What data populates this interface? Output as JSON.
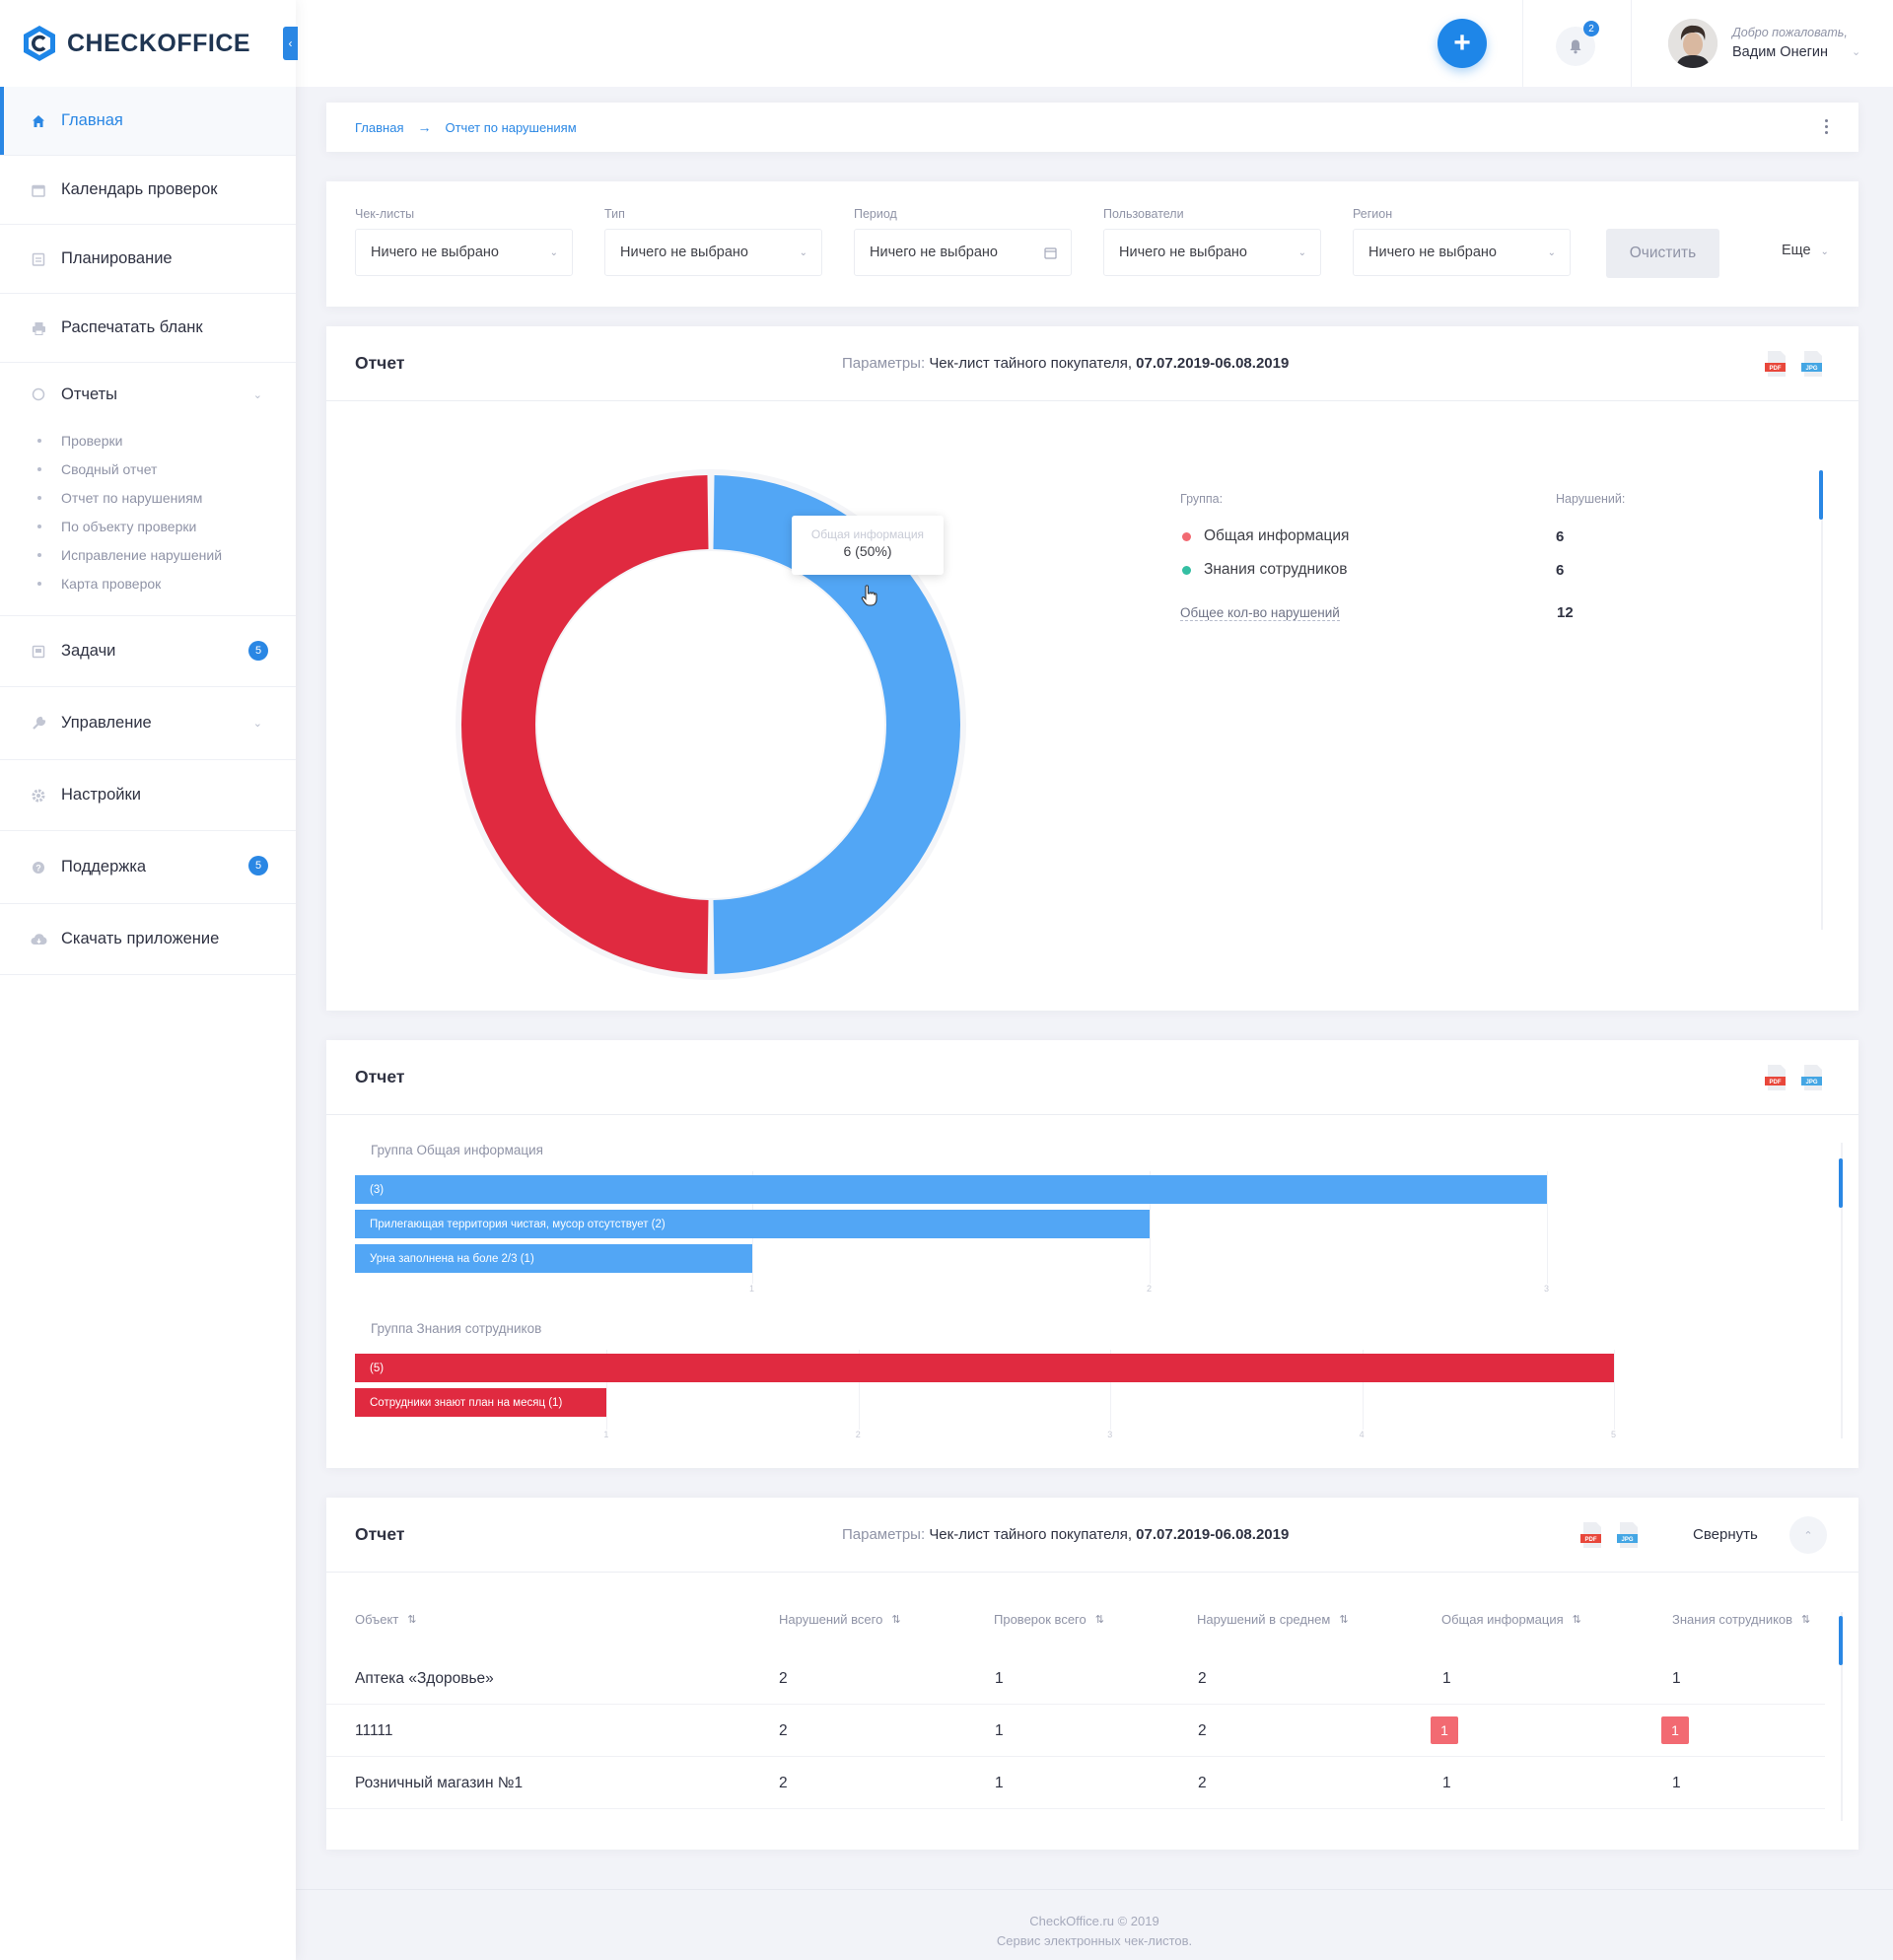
{
  "brand": {
    "name": "CHECKOFFICE"
  },
  "sidebar": {
    "items": [
      {
        "label": "Главная",
        "icon": "home-icon",
        "active": true
      },
      {
        "label": "Календарь проверок",
        "icon": "calendar-icon"
      },
      {
        "label": "Планирование",
        "icon": "planning-icon"
      },
      {
        "label": "Распечатать бланк",
        "icon": "print-icon"
      }
    ],
    "reports": {
      "label": "Отчеты",
      "icon": "reports-icon",
      "sub": [
        "Проверки",
        "Сводный отчет",
        "Отчет по нарушениям",
        "По объекту проверки",
        "Исправление нарушений",
        "Карта проверок"
      ]
    },
    "items2": [
      {
        "label": "Задачи",
        "icon": "tasks-icon",
        "badge": "5"
      },
      {
        "label": "Управление",
        "icon": "wrench-icon"
      },
      {
        "label": "Настройки",
        "icon": "gear-icon"
      },
      {
        "label": "Поддержка",
        "icon": "help-icon",
        "badge": "5"
      },
      {
        "label": "Скачать приложение",
        "icon": "cloud-download-icon"
      }
    ]
  },
  "header": {
    "notifications_count": "2",
    "welcome": "Добро пожаловать,",
    "user_name": "Вадим Онегин"
  },
  "breadcrumb": {
    "home": "Главная",
    "current": "Отчет по нарушениям"
  },
  "filters": {
    "checklists": {
      "label": "Чек-листы",
      "value": "Ничего не выбрано"
    },
    "type": {
      "label": "Тип",
      "value": "Ничего не выбрано"
    },
    "period": {
      "label": "Период",
      "value": "Ничего не выбрано"
    },
    "users": {
      "label": "Пользователи",
      "value": "Ничего не выбрано"
    },
    "region": {
      "label": "Регион",
      "value": "Ничего не выбрано"
    },
    "clear_label": "Очистить",
    "more_label": "Еще"
  },
  "report1": {
    "title": "Отчет",
    "params_label": "Параметры:",
    "params_text": "Чек-лист тайного покупателя,",
    "params_date": "07.07.2019-06.08.2019",
    "legend_group_header": "Группа:",
    "legend_violations_header": "Нарушений:",
    "legend": [
      {
        "name": "Общая информация",
        "value": "6",
        "color": "#f26a72"
      },
      {
        "name": "Знания сотрудников",
        "value": "6",
        "color": "#34bfa3"
      }
    ],
    "total_label": "Общее кол-во нарушений",
    "total_value": "12",
    "tooltip": {
      "name": "Общая информация",
      "value": "6 (50%)"
    }
  },
  "chart_data": [
    {
      "type": "pie",
      "categories": [
        "Общая информация",
        "Знания сотрудников"
      ],
      "values": [
        6,
        6
      ],
      "colors": [
        "#52a6f5",
        "#e02a40"
      ]
    },
    {
      "type": "bar",
      "orientation": "horizontal",
      "title": "Группа Общая информация",
      "categories": [
        "",
        "Прилегающая территория чистая, мусор отсутствует",
        "Урна заполнена на боле 2/3"
      ],
      "values": [
        3,
        2,
        1
      ],
      "labels": [
        "(3)",
        "Прилегающая территория чистая, мусор отсутствует (2)",
        "Урна заполнена на боле 2/3 (1)"
      ],
      "ticks": [
        "1",
        "2",
        "3"
      ],
      "xlim": [
        0,
        3
      ],
      "color": "#52a6f5"
    },
    {
      "type": "bar",
      "orientation": "horizontal",
      "title": "Группа Знания сотрудников",
      "categories": [
        "",
        "Сотрудники знают план на месяц"
      ],
      "values": [
        5,
        1
      ],
      "labels": [
        "(5)",
        "Сотрудники знают план на месяц (1)"
      ],
      "ticks": [
        "1",
        "2",
        "3",
        "4",
        "5"
      ],
      "xlim": [
        0,
        5
      ],
      "color": "#e02a40"
    }
  ],
  "report2": {
    "title": "Отчет"
  },
  "report3": {
    "title": "Отчет",
    "params_label": "Параметры:",
    "params_text": "Чек-лист тайного покупателя,",
    "params_date": "07.07.2019-06.08.2019",
    "collapse_label": "Свернуть",
    "columns": [
      "Объект",
      "Нарушений всего",
      "Проверок всего",
      "Нарушений в среднем",
      "Общая информация",
      "Знания сотрудников"
    ],
    "rows": [
      [
        "Аптека «Здоровье»",
        "2",
        "1",
        "2",
        "1",
        "1"
      ],
      [
        "11111",
        "2",
        "1",
        "2",
        "1",
        "1"
      ],
      [
        "Розничный магазин №1",
        "2",
        "1",
        "2",
        "1",
        "1"
      ]
    ]
  },
  "footer": {
    "line1": "CheckOffice.ru © 2019",
    "line2": "Сервис электронных чек-листов."
  }
}
